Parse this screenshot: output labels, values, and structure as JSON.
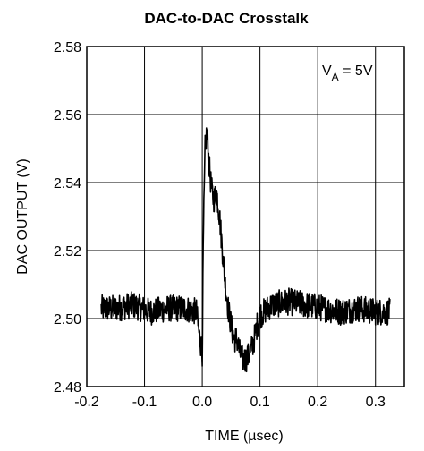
{
  "chart_data": {
    "type": "line",
    "title": "DAC-to-DAC Crosstalk",
    "xlabel": "TIME (µsec)",
    "ylabel": "DAC OUTPUT (V)",
    "xlim": [
      -0.2,
      0.35
    ],
    "ylim": [
      2.48,
      2.58
    ],
    "x_ticks": [
      -0.2,
      -0.1,
      0.0,
      0.1,
      0.2,
      0.3
    ],
    "x_tick_labels": [
      "-0.2",
      "-0.1",
      "0.0",
      "0.1",
      "0.2",
      "0.3"
    ],
    "y_ticks": [
      2.48,
      2.5,
      2.52,
      2.54,
      2.56,
      2.58
    ],
    "y_tick_labels": [
      "2.48",
      "2.50",
      "2.52",
      "2.54",
      "2.56",
      "2.58"
    ],
    "grid": true,
    "annotation": {
      "main": "V",
      "sub": "A",
      "rest": " = 5V"
    },
    "series": [
      {
        "noise_band": 0.004,
        "x": [
          -0.175,
          -0.15,
          -0.12,
          -0.09,
          -0.06,
          -0.03,
          -0.01,
          -0.005,
          0.0,
          0.002,
          0.005,
          0.008,
          0.012,
          0.016,
          0.02,
          0.025,
          0.03,
          0.035,
          0.04,
          0.045,
          0.05,
          0.055,
          0.06,
          0.065,
          0.07,
          0.075,
          0.08,
          0.085,
          0.09,
          0.095,
          0.1,
          0.12,
          0.15,
          0.18,
          0.21,
          0.24,
          0.27,
          0.3,
          0.325
        ],
        "y": [
          2.503,
          2.503,
          2.504,
          2.502,
          2.503,
          2.503,
          2.502,
          2.495,
          2.49,
          2.525,
          2.55,
          2.555,
          2.545,
          2.538,
          2.535,
          2.537,
          2.53,
          2.52,
          2.51,
          2.503,
          2.498,
          2.494,
          2.494,
          2.49,
          2.488,
          2.488,
          2.489,
          2.491,
          2.494,
          2.498,
          2.501,
          2.504,
          2.505,
          2.504,
          2.503,
          2.502,
          2.503,
          2.502,
          2.502
        ]
      }
    ]
  }
}
